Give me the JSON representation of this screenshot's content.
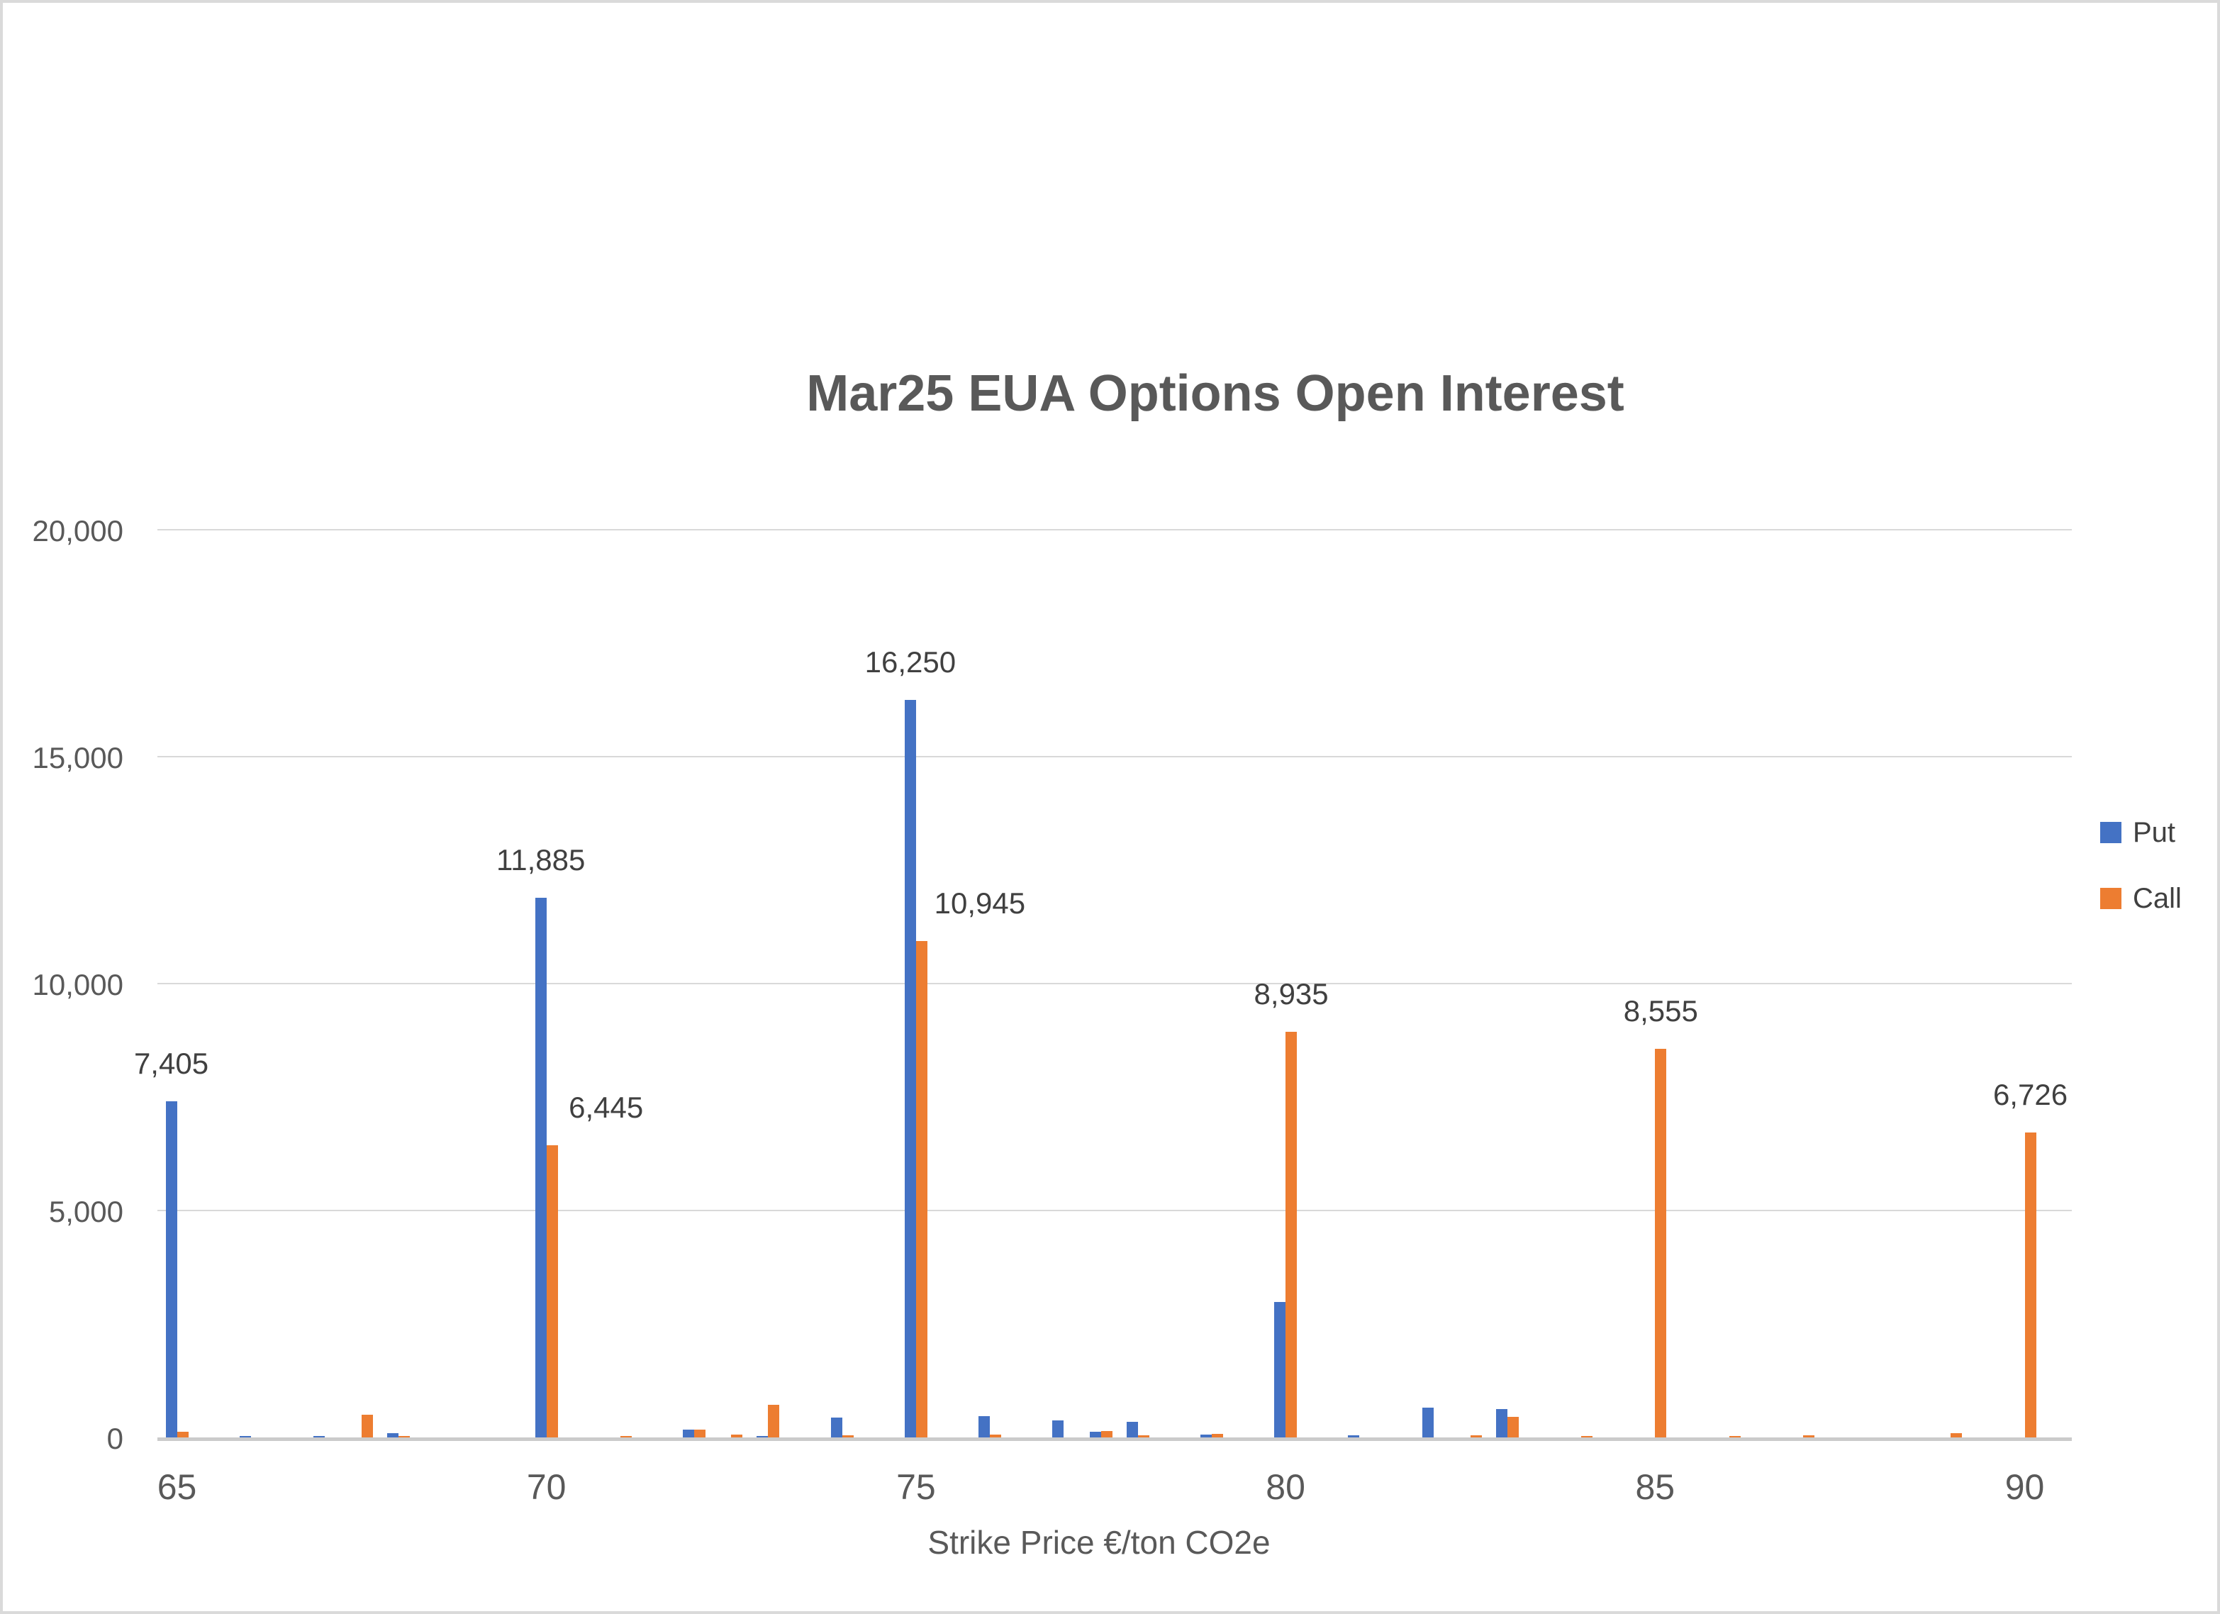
{
  "page": {
    "background": "#FFFFFF",
    "border_color": "#DADADA"
  },
  "colors": {
    "put": "#4472C4",
    "call": "#ED7D31",
    "gridline": "#D9D9D9",
    "axis_line": "#CBCBCB",
    "axis_text": "#595959",
    "title_text": "#595959",
    "data_label_text": "#404040"
  },
  "chart_data": {
    "type": "bar",
    "title": "Mar25 EUA Options Open Interest",
    "xlabel": "Strike Price €/ton CO2e",
    "ylabel": "",
    "ylim": [
      0,
      20000
    ],
    "grid": true,
    "legend_position": "right",
    "series": [
      {
        "name": "Put",
        "color": "#4472C4"
      },
      {
        "name": "Call",
        "color": "#ED7D31"
      }
    ],
    "yticks": [
      {
        "value": 0,
        "label": "0"
      },
      {
        "value": 5000,
        "label": "5,000"
      },
      {
        "value": 10000,
        "label": "10,000"
      },
      {
        "value": 15000,
        "label": "15,000"
      },
      {
        "value": 20000,
        "label": "20,000"
      }
    ],
    "xticks": [
      {
        "strike": 65,
        "label": "65"
      },
      {
        "strike": 70,
        "label": "70"
      },
      {
        "strike": 75,
        "label": "75"
      },
      {
        "strike": 80,
        "label": "80"
      },
      {
        "strike": 85,
        "label": "85"
      },
      {
        "strike": 90,
        "label": "90"
      }
    ],
    "points": [
      {
        "strike": 65,
        "put": 7405,
        "call": 120,
        "put_label": "7,405"
      },
      {
        "strike": 66,
        "put": 30
      },
      {
        "strike": 67,
        "put": 30
      },
      {
        "strike": 67.5,
        "call": 495
      },
      {
        "strike": 68,
        "put": 95,
        "call": 30
      },
      {
        "strike": 70,
        "put": 11885,
        "call": 6445,
        "put_label": "11,885",
        "call_label": "6,445",
        "call_label_dx": 76
      },
      {
        "strike": 71,
        "call": 30
      },
      {
        "strike": 72,
        "put": 170,
        "call": 170
      },
      {
        "strike": 72.5,
        "call": 70
      },
      {
        "strike": 73,
        "put": 30,
        "call": 720
      },
      {
        "strike": 74,
        "put": 440,
        "call": 45
      },
      {
        "strike": 75,
        "put": 16250,
        "call": 10945,
        "put_label": "16,250",
        "call_label": "10,945",
        "call_label_dx": 82
      },
      {
        "strike": 76,
        "put": 470,
        "call": 60
      },
      {
        "strike": 77,
        "put": 375
      },
      {
        "strike": 77.5,
        "put": 130,
        "call": 140
      },
      {
        "strike": 78,
        "put": 340,
        "call": 50
      },
      {
        "strike": 79,
        "put": 65,
        "call": 80
      },
      {
        "strike": 80,
        "put": 2980,
        "call": 8935,
        "call_label": "8,935"
      },
      {
        "strike": 81,
        "put": 40
      },
      {
        "strike": 82,
        "put": 650
      },
      {
        "strike": 82.5,
        "call": 40
      },
      {
        "strike": 83,
        "put": 620,
        "call": 450
      },
      {
        "strike": 84,
        "call": 25
      },
      {
        "strike": 85,
        "call": 8555,
        "call_label": "8,555"
      },
      {
        "strike": 86,
        "call": 30
      },
      {
        "strike": 87,
        "call": 45
      },
      {
        "strike": 89,
        "call": 90
      },
      {
        "strike": 90,
        "call": 6726,
        "call_label": "6,726"
      }
    ]
  }
}
